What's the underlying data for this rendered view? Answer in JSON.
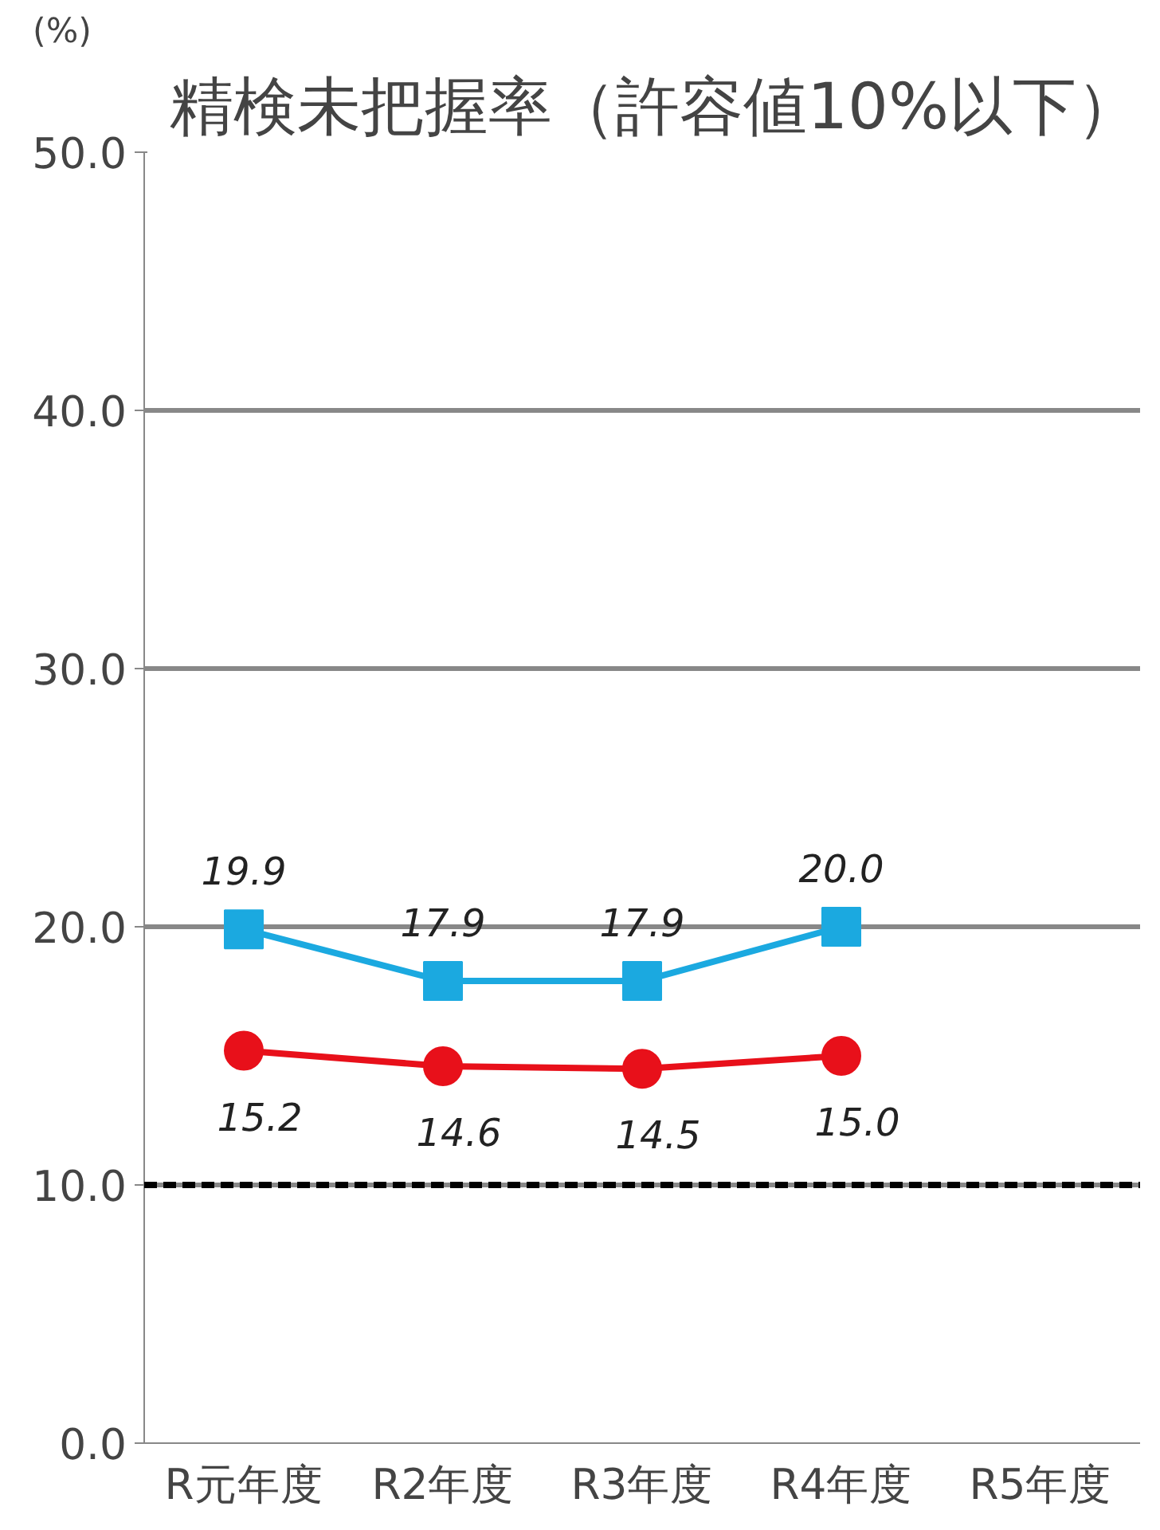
{
  "chart_data": {
    "type": "line",
    "title": "精検未把握率（許容値10%以下）",
    "ylabel": "(%)",
    "categories": [
      "R元年度",
      "R2年度",
      "R3年度",
      "R4年度",
      "R5年度"
    ],
    "series": [
      {
        "color": "#1ba9e0",
        "marker": "square",
        "values": [
          19.9,
          17.9,
          17.9,
          20.0,
          null
        ],
        "value_labels": [
          "19.9",
          "17.9",
          "17.9",
          "20.0",
          null
        ]
      },
      {
        "color": "#e8101a",
        "marker": "circle",
        "values": [
          15.2,
          14.6,
          14.5,
          15.0,
          null
        ],
        "value_labels": [
          "15.2",
          "14.6",
          "14.5",
          "15.0",
          null
        ]
      }
    ],
    "ylim": [
      0,
      50
    ],
    "yticks": [
      {
        "value": 0,
        "label": "0.0"
      },
      {
        "value": 10,
        "label": "10.0"
      },
      {
        "value": 20,
        "label": "20.0"
      },
      {
        "value": 30,
        "label": "30.0"
      },
      {
        "value": 40,
        "label": "40.0"
      },
      {
        "value": 50,
        "label": "50.0"
      }
    ],
    "grid": "y",
    "ref_lines": [
      {
        "axis": "y",
        "value": 10,
        "label": null,
        "color": "#000000",
        "line_style": "dashed"
      }
    ]
  }
}
